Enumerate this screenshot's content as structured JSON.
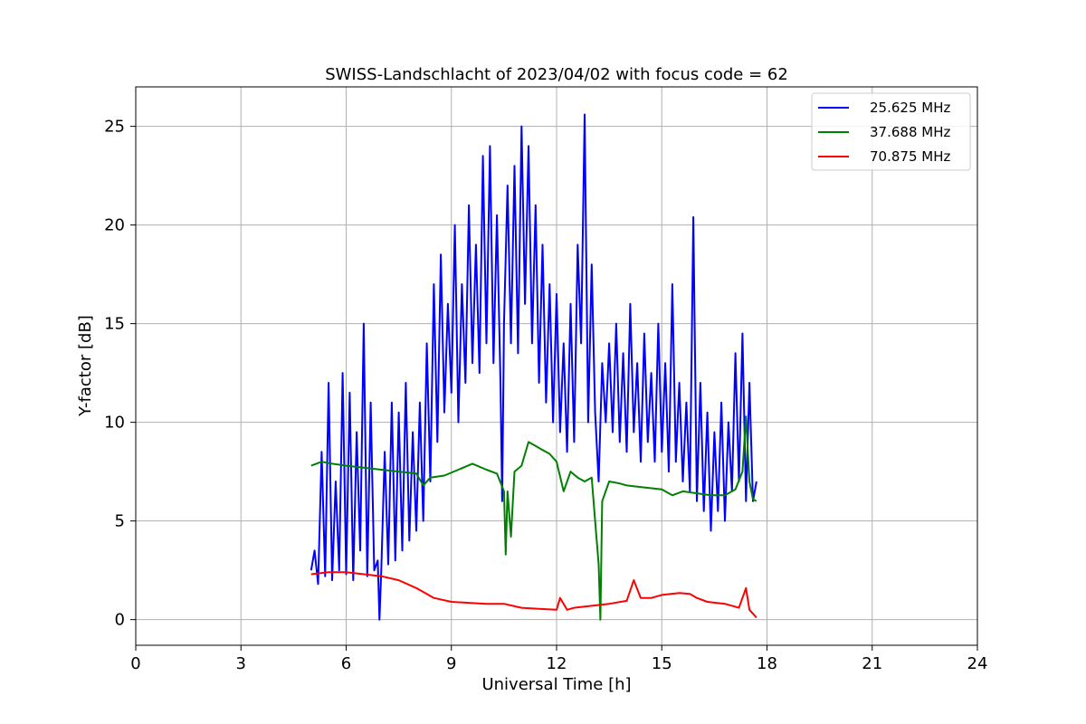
{
  "chart_data": {
    "type": "line",
    "title": "SWISS-Landschlacht of 2023/04/02 with focus code = 62",
    "xlabel": "Universal Time [h]",
    "ylabel": "Y-factor [dB]",
    "xlim": [
      0,
      24
    ],
    "ylim": [
      -1.3,
      27
    ],
    "xticks": [
      0,
      3,
      6,
      9,
      12,
      15,
      18,
      21,
      24
    ],
    "yticks": [
      0,
      5,
      10,
      15,
      20,
      25
    ],
    "grid": true,
    "legend_position": "top-right",
    "series": [
      {
        "name": "25.625 MHz",
        "color": "#0000ff",
        "points": [
          [
            5.0,
            2.5
          ],
          [
            5.1,
            3.5
          ],
          [
            5.2,
            1.8
          ],
          [
            5.3,
            8.5
          ],
          [
            5.4,
            2.2
          ],
          [
            5.5,
            12.0
          ],
          [
            5.6,
            2.0
          ],
          [
            5.7,
            7.0
          ],
          [
            5.8,
            2.5
          ],
          [
            5.9,
            12.5
          ],
          [
            6.0,
            2.3
          ],
          [
            6.1,
            11.5
          ],
          [
            6.2,
            2.0
          ],
          [
            6.3,
            9.5
          ],
          [
            6.4,
            3.5
          ],
          [
            6.5,
            15.0
          ],
          [
            6.6,
            2.2
          ],
          [
            6.7,
            11.0
          ],
          [
            6.8,
            2.5
          ],
          [
            6.9,
            3.0
          ],
          [
            6.95,
            0.0
          ],
          [
            7.0,
            2.5
          ],
          [
            7.1,
            8.5
          ],
          [
            7.2,
            2.8
          ],
          [
            7.3,
            11.0
          ],
          [
            7.4,
            3.0
          ],
          [
            7.5,
            10.5
          ],
          [
            7.6,
            3.5
          ],
          [
            7.7,
            12.0
          ],
          [
            7.8,
            4.0
          ],
          [
            7.9,
            9.5
          ],
          [
            8.0,
            4.5
          ],
          [
            8.1,
            11.0
          ],
          [
            8.2,
            5.0
          ],
          [
            8.3,
            14.0
          ],
          [
            8.4,
            7.0
          ],
          [
            8.5,
            17.0
          ],
          [
            8.6,
            9.0
          ],
          [
            8.7,
            18.5
          ],
          [
            8.8,
            10.5
          ],
          [
            8.9,
            16.0
          ],
          [
            9.0,
            11.5
          ],
          [
            9.1,
            20.0
          ],
          [
            9.2,
            10.0
          ],
          [
            9.3,
            17.0
          ],
          [
            9.4,
            12.0
          ],
          [
            9.5,
            21.0
          ],
          [
            9.6,
            13.0
          ],
          [
            9.7,
            19.0
          ],
          [
            9.8,
            12.5
          ],
          [
            9.9,
            23.5
          ],
          [
            10.0,
            14.0
          ],
          [
            10.1,
            24.0
          ],
          [
            10.2,
            13.0
          ],
          [
            10.3,
            20.5
          ],
          [
            10.4,
            12.0
          ],
          [
            10.45,
            6.0
          ],
          [
            10.5,
            15.0
          ],
          [
            10.6,
            22.0
          ],
          [
            10.7,
            14.0
          ],
          [
            10.8,
            23.0
          ],
          [
            10.9,
            13.5
          ],
          [
            11.0,
            25.0
          ],
          [
            11.1,
            16.0
          ],
          [
            11.2,
            24.0
          ],
          [
            11.3,
            14.0
          ],
          [
            11.4,
            21.0
          ],
          [
            11.5,
            12.0
          ],
          [
            11.6,
            19.0
          ],
          [
            11.7,
            11.0
          ],
          [
            11.8,
            17.0
          ],
          [
            11.9,
            10.0
          ],
          [
            12.0,
            16.5
          ],
          [
            12.1,
            9.5
          ],
          [
            12.2,
            14.0
          ],
          [
            12.3,
            8.5
          ],
          [
            12.4,
            16.0
          ],
          [
            12.5,
            9.0
          ],
          [
            12.6,
            19.0
          ],
          [
            12.7,
            14.0
          ],
          [
            12.8,
            25.6
          ],
          [
            12.9,
            10.0
          ],
          [
            13.0,
            18.0
          ],
          [
            13.1,
            10.5
          ],
          [
            13.2,
            7.0
          ],
          [
            13.3,
            13.0
          ],
          [
            13.4,
            10.0
          ],
          [
            13.5,
            14.0
          ],
          [
            13.6,
            9.5
          ],
          [
            13.7,
            15.0
          ],
          [
            13.8,
            9.0
          ],
          [
            13.9,
            13.5
          ],
          [
            14.0,
            8.5
          ],
          [
            14.1,
            16.0
          ],
          [
            14.2,
            9.5
          ],
          [
            14.3,
            13.0
          ],
          [
            14.4,
            8.0
          ],
          [
            14.5,
            14.5
          ],
          [
            14.6,
            9.0
          ],
          [
            14.7,
            12.5
          ],
          [
            14.8,
            8.0
          ],
          [
            14.9,
            15.0
          ],
          [
            15.0,
            8.5
          ],
          [
            15.1,
            13.0
          ],
          [
            15.2,
            7.5
          ],
          [
            15.3,
            17.0
          ],
          [
            15.4,
            8.0
          ],
          [
            15.5,
            12.0
          ],
          [
            15.6,
            7.0
          ],
          [
            15.7,
            11.0
          ],
          [
            15.8,
            6.5
          ],
          [
            15.9,
            20.4
          ],
          [
            16.0,
            6.0
          ],
          [
            16.1,
            12.0
          ],
          [
            16.2,
            5.5
          ],
          [
            16.3,
            10.5
          ],
          [
            16.4,
            4.5
          ],
          [
            16.5,
            9.5
          ],
          [
            16.6,
            5.5
          ],
          [
            16.7,
            11.0
          ],
          [
            16.8,
            5.0
          ],
          [
            16.9,
            10.0
          ],
          [
            17.0,
            6.5
          ],
          [
            17.1,
            13.5
          ],
          [
            17.2,
            7.0
          ],
          [
            17.3,
            14.5
          ],
          [
            17.4,
            6.0
          ],
          [
            17.5,
            12.0
          ],
          [
            17.6,
            6.0
          ],
          [
            17.7,
            7.0
          ]
        ]
      },
      {
        "name": "37.688 MHz",
        "color": "#008000",
        "points": [
          [
            5.0,
            7.8
          ],
          [
            5.3,
            8.0
          ],
          [
            5.6,
            7.9
          ],
          [
            6.0,
            7.8
          ],
          [
            6.5,
            7.7
          ],
          [
            7.0,
            7.6
          ],
          [
            7.5,
            7.5
          ],
          [
            8.0,
            7.4
          ],
          [
            8.2,
            6.8
          ],
          [
            8.4,
            7.2
          ],
          [
            8.8,
            7.3
          ],
          [
            9.2,
            7.6
          ],
          [
            9.6,
            7.9
          ],
          [
            10.0,
            7.6
          ],
          [
            10.3,
            7.4
          ],
          [
            10.5,
            6.5
          ],
          [
            10.55,
            3.3
          ],
          [
            10.6,
            6.5
          ],
          [
            10.7,
            4.2
          ],
          [
            10.8,
            7.5
          ],
          [
            11.0,
            7.8
          ],
          [
            11.2,
            9.0
          ],
          [
            11.4,
            8.8
          ],
          [
            11.6,
            8.6
          ],
          [
            11.8,
            8.4
          ],
          [
            12.0,
            8.0
          ],
          [
            12.2,
            6.5
          ],
          [
            12.4,
            7.5
          ],
          [
            12.6,
            7.2
          ],
          [
            12.8,
            7.0
          ],
          [
            13.0,
            7.2
          ],
          [
            13.1,
            5.0
          ],
          [
            13.2,
            2.8
          ],
          [
            13.25,
            0.0
          ],
          [
            13.3,
            6.0
          ],
          [
            13.5,
            7.0
          ],
          [
            13.8,
            6.9
          ],
          [
            14.0,
            6.8
          ],
          [
            14.5,
            6.7
          ],
          [
            15.0,
            6.6
          ],
          [
            15.3,
            6.3
          ],
          [
            15.6,
            6.5
          ],
          [
            16.0,
            6.4
          ],
          [
            16.4,
            6.3
          ],
          [
            16.8,
            6.3
          ],
          [
            17.1,
            6.6
          ],
          [
            17.3,
            7.5
          ],
          [
            17.4,
            10.3
          ],
          [
            17.5,
            7.0
          ],
          [
            17.6,
            6.1
          ],
          [
            17.7,
            6.0
          ]
        ]
      },
      {
        "name": "70.875 MHz",
        "color": "#ff0000",
        "points": [
          [
            5.0,
            2.3
          ],
          [
            5.5,
            2.4
          ],
          [
            6.0,
            2.4
          ],
          [
            6.5,
            2.3
          ],
          [
            7.0,
            2.2
          ],
          [
            7.5,
            2.0
          ],
          [
            8.0,
            1.6
          ],
          [
            8.5,
            1.1
          ],
          [
            9.0,
            0.9
          ],
          [
            9.5,
            0.85
          ],
          [
            10.0,
            0.8
          ],
          [
            10.5,
            0.8
          ],
          [
            11.0,
            0.6
          ],
          [
            11.5,
            0.55
          ],
          [
            12.0,
            0.5
          ],
          [
            12.1,
            1.1
          ],
          [
            12.3,
            0.5
          ],
          [
            12.5,
            0.6
          ],
          [
            13.0,
            0.7
          ],
          [
            13.5,
            0.8
          ],
          [
            14.0,
            0.95
          ],
          [
            14.2,
            2.0
          ],
          [
            14.4,
            1.1
          ],
          [
            14.7,
            1.1
          ],
          [
            15.0,
            1.25
          ],
          [
            15.5,
            1.35
          ],
          [
            15.8,
            1.3
          ],
          [
            16.0,
            1.1
          ],
          [
            16.3,
            0.9
          ],
          [
            16.8,
            0.8
          ],
          [
            17.2,
            0.6
          ],
          [
            17.4,
            1.6
          ],
          [
            17.5,
            0.5
          ],
          [
            17.6,
            0.3
          ],
          [
            17.7,
            0.1
          ]
        ]
      }
    ]
  }
}
